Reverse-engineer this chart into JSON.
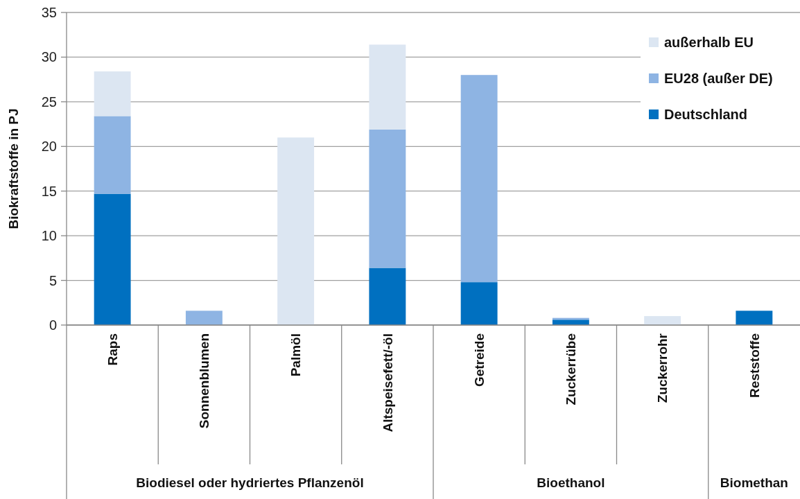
{
  "chart_data": {
    "type": "bar",
    "stacked": true,
    "ylabel": "Biokraftstoffe in PJ",
    "categories": [
      "Raps",
      "Sonnenblumen",
      "Palmöl",
      "Altspeisefett/-öl",
      "Getreide",
      "Zuckerrübe",
      "Zuckerrohr",
      "Reststoffe"
    ],
    "series": [
      {
        "name": "Deutschland",
        "color": "#0070c0",
        "values": [
          14.7,
          0,
          0,
          6.4,
          4.8,
          0.6,
          0,
          1.6
        ]
      },
      {
        "name": "EU28 (außer DE)",
        "color": "#8eb4e3",
        "values": [
          8.7,
          1.6,
          0,
          15.5,
          23.2,
          0.2,
          0,
          0
        ]
      },
      {
        "name": "außerhalb EU",
        "color": "#dce6f2",
        "values": [
          5.0,
          0,
          21.0,
          9.5,
          0,
          0,
          1.0,
          0
        ]
      }
    ],
    "ylim": [
      0,
      35
    ],
    "yticks": [
      0,
      5,
      10,
      15,
      20,
      25,
      30,
      35
    ],
    "grid": "y",
    "legend": "top right",
    "annotations": [
      "Biodiesel oder hydriertes Pflanzenöl",
      "Bioethanol",
      "Biomethan"
    ]
  }
}
